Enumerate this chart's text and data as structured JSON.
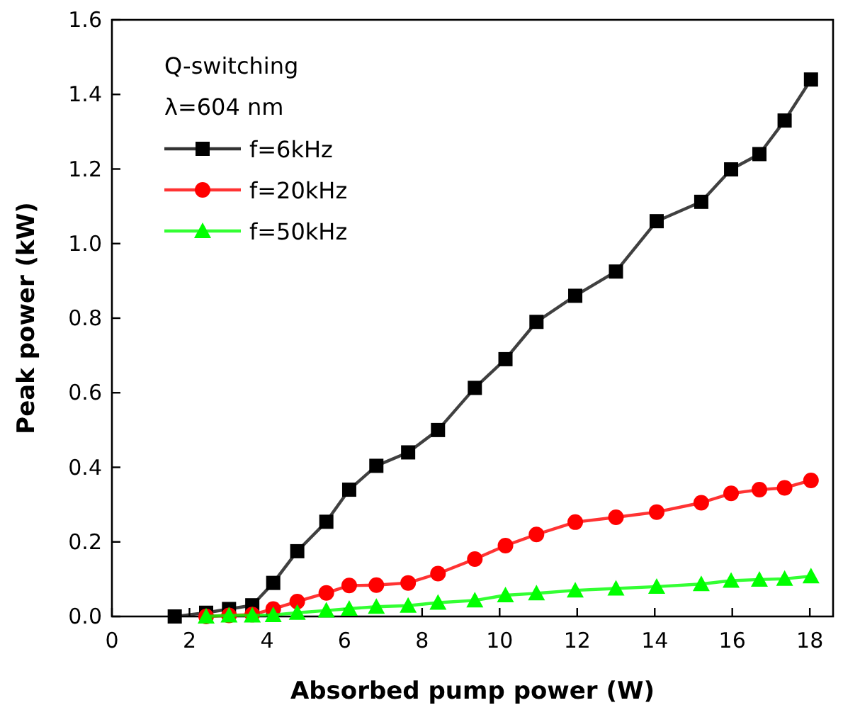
{
  "chart_data": {
    "type": "line",
    "xlabel": "Absorbed pump power (W)",
    "ylabel": "Peak power  (kW)",
    "annotations": [
      "Q-switching",
      "λ=604 nm"
    ],
    "xlim": [
      0,
      18.6
    ],
    "xticks": [
      0,
      2,
      4,
      6,
      8,
      10,
      12,
      14,
      16,
      18
    ],
    "ylim": [
      0,
      1.6
    ],
    "yticks": [
      {
        "value": 0,
        "label": "0.0"
      },
      {
        "value": 0.2,
        "label": "0.2"
      },
      {
        "value": 0.4,
        "label": "0.4"
      },
      {
        "value": 0.6,
        "label": "0.6"
      },
      {
        "value": 0.8,
        "label": "0.8"
      },
      {
        "value": 1,
        "label": "1.0"
      },
      {
        "value": 1.2,
        "label": "1.2"
      },
      {
        "value": 1.4,
        "label": "1.4"
      },
      {
        "value": 1.6,
        "label": "1.6"
      }
    ],
    "grid": false,
    "legend": "top left",
    "series": [
      {
        "name": "f=6kHz",
        "color": "#000000",
        "marker": "square",
        "x": [
          1.62,
          2.43,
          3.02,
          3.62,
          4.16,
          4.78,
          5.53,
          6.12,
          6.82,
          7.64,
          8.41,
          9.36,
          10.15,
          10.95,
          11.95,
          13.0,
          14.05,
          15.2,
          15.97,
          16.7,
          17.35,
          18.03
        ],
        "values": [
          0,
          0.01,
          0.02,
          0.03,
          0.09,
          0.175,
          0.254,
          0.34,
          0.404,
          0.44,
          0.5,
          0.613,
          0.69,
          0.79,
          0.86,
          0.925,
          1.06,
          1.112,
          1.199,
          1.24,
          1.33,
          1.44
        ]
      },
      {
        "name": "f=20kHz",
        "color": "#ff0000",
        "marker": "circle",
        "x": [
          2.43,
          3.02,
          3.62,
          4.16,
          4.78,
          5.53,
          6.12,
          6.82,
          7.64,
          8.41,
          9.36,
          10.15,
          10.95,
          11.95,
          13.0,
          14.05,
          15.2,
          15.97,
          16.7,
          17.35,
          18.03
        ],
        "values": [
          0,
          0.003,
          0.005,
          0.02,
          0.04,
          0.063,
          0.083,
          0.084,
          0.09,
          0.115,
          0.154,
          0.19,
          0.22,
          0.253,
          0.266,
          0.28,
          0.305,
          0.33,
          0.34,
          0.345,
          0.365
        ]
      },
      {
        "name": "f=50kHz",
        "color": "#00ff00",
        "marker": "triangle",
        "x": [
          2.43,
          3.02,
          3.62,
          4.16,
          4.78,
          5.53,
          6.12,
          6.82,
          7.64,
          8.41,
          9.36,
          10.15,
          10.95,
          11.95,
          13.0,
          14.05,
          15.2,
          15.97,
          16.7,
          17.35,
          18.03
        ],
        "values": [
          0,
          0.003,
          0.003,
          0.004,
          0.01,
          0.016,
          0.021,
          0.026,
          0.029,
          0.037,
          0.043,
          0.057,
          0.062,
          0.07,
          0.075,
          0.08,
          0.087,
          0.096,
          0.099,
          0.101,
          0.108
        ]
      }
    ]
  }
}
